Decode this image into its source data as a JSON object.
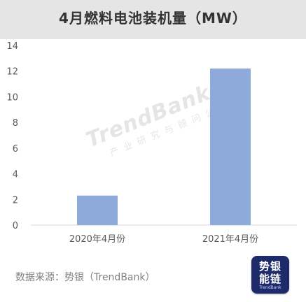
{
  "chart_data": {
    "type": "bar",
    "title": "4月燃料电池装机量（MW）",
    "categories": [
      "2020年4月份",
      "2021年4月份"
    ],
    "values": [
      2.3,
      12.2
    ],
    "ylim": [
      0,
      14
    ],
    "yticks": [
      0,
      2,
      4,
      6,
      8,
      10,
      12,
      14
    ],
    "xlabel": "",
    "ylabel": "",
    "grid": false,
    "bar_color": "#8eaadb"
  },
  "footer": {
    "source": "数据来源：势银（TrendBank）"
  },
  "watermark": {
    "main": "TrendBank",
    "sub": "产业研究与顾问公司"
  },
  "logo": {
    "line1": "势银",
    "line2": "能链",
    "line3": "TrendBank"
  }
}
